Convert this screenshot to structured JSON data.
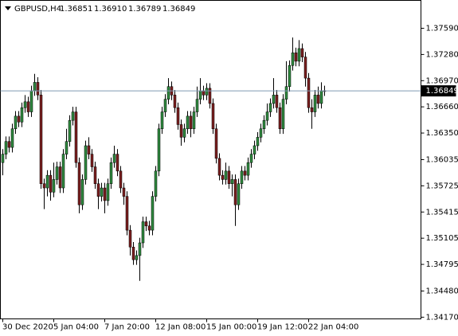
{
  "chart_data": {
    "type": "candlestick",
    "symbol": "GBPUSD,H4",
    "ohlc_labels": [
      "1.36851",
      "1.36910",
      "1.36789",
      "1.36849"
    ],
    "categories": [
      "30 Dec 2020",
      null,
      null,
      null,
      null,
      null,
      null,
      null,
      null,
      null,
      null,
      null,
      null,
      null,
      null,
      null,
      "5 Jan 04:00",
      null,
      null,
      null,
      null,
      null,
      null,
      null,
      null,
      null,
      null,
      null,
      null,
      null,
      null,
      null,
      "7 Jan 20:00",
      null,
      null,
      null,
      null,
      null,
      null,
      null,
      null,
      null,
      null,
      null,
      null,
      null,
      null,
      null,
      "12 Jan 08:00",
      null,
      null,
      null,
      null,
      null,
      null,
      null,
      null,
      null,
      null,
      null,
      null,
      null,
      null,
      null,
      "15 Jan 00:00",
      null,
      null,
      null,
      null,
      null,
      null,
      null,
      null,
      null,
      null,
      null,
      null,
      null,
      null,
      null,
      "19 Jan 12:00",
      null,
      null,
      null,
      null,
      null,
      null,
      null,
      null,
      null,
      null,
      null,
      null,
      null,
      null,
      null,
      "22 Jan 04:00",
      null,
      null,
      null,
      null,
      null
    ],
    "open": [
      1.36,
      1.361,
      1.3625,
      1.3618,
      1.364,
      1.3655,
      1.3648,
      1.3665,
      1.3672,
      1.366,
      1.3685,
      1.3695,
      1.368,
      1.3575,
      1.357,
      1.3585,
      1.3565,
      1.358,
      1.3595,
      1.357,
      1.361,
      1.3625,
      1.365,
      1.366,
      1.36,
      1.355,
      1.358,
      1.362,
      1.361,
      1.3595,
      1.3575,
      1.356,
      1.357,
      1.3555,
      1.3575,
      1.36,
      1.361,
      1.359,
      1.357,
      1.356,
      1.352,
      1.35,
      1.3485,
      1.349,
      1.3505,
      1.353,
      1.3525,
      1.352,
      1.356,
      1.359,
      1.364,
      1.366,
      1.3675,
      1.369,
      1.368,
      1.3665,
      1.3645,
      1.363,
      1.364,
      1.3655,
      1.364,
      1.366,
      1.3675,
      1.3685,
      1.368,
      1.3688,
      1.367,
      1.364,
      1.3605,
      1.3585,
      1.358,
      1.359,
      1.3575,
      1.358,
      1.355,
      1.3575,
      1.359,
      1.3585,
      1.36,
      1.361,
      1.362,
      1.363,
      1.364,
      1.365,
      1.366,
      1.367,
      1.368,
      1.3665,
      1.364,
      1.3675,
      1.369,
      1.3715,
      1.373,
      1.372,
      1.3735,
      1.3725,
      1.37,
      1.3665,
      1.366,
      1.368,
      1.367,
      1.36851
    ],
    "high": [
      1.3616,
      1.3631,
      1.3631,
      1.3646,
      1.3661,
      1.3661,
      1.3671,
      1.368,
      1.3678,
      1.3691,
      1.3705,
      1.3701,
      1.3686,
      1.3581,
      1.3591,
      1.3591,
      1.36,
      1.3601,
      1.3601,
      1.3616,
      1.364,
      1.3656,
      1.3666,
      1.3666,
      1.3606,
      1.3586,
      1.3626,
      1.363,
      1.3616,
      1.3601,
      1.3581,
      1.3576,
      1.3576,
      1.3581,
      1.3606,
      1.362,
      1.3616,
      1.3596,
      1.3576,
      1.3566,
      1.3526,
      1.3506,
      1.3496,
      1.3511,
      1.3536,
      1.3536,
      1.3531,
      1.3566,
      1.3596,
      1.3646,
      1.3666,
      1.3681,
      1.37,
      1.3696,
      1.3686,
      1.3671,
      1.3651,
      1.3646,
      1.3661,
      1.3661,
      1.3666,
      1.369,
      1.37,
      1.3691,
      1.3694,
      1.3694,
      1.3676,
      1.3646,
      1.3611,
      1.3591,
      1.36,
      1.3596,
      1.3586,
      1.3586,
      1.3581,
      1.3596,
      1.3596,
      1.3606,
      1.3616,
      1.3626,
      1.3636,
      1.3646,
      1.3656,
      1.367,
      1.3676,
      1.37,
      1.3686,
      1.3671,
      1.3681,
      1.372,
      1.3721,
      1.3748,
      1.3736,
      1.3745,
      1.3741,
      1.3731,
      1.3706,
      1.3675,
      1.3686,
      1.369,
      1.3695,
      1.3691
    ],
    "low": [
      1.3585,
      1.3604,
      1.3612,
      1.3612,
      1.3634,
      1.3642,
      1.3642,
      1.3659,
      1.3654,
      1.3654,
      1.3679,
      1.3674,
      1.3569,
      1.3545,
      1.356,
      1.3555,
      1.3559,
      1.3574,
      1.3564,
      1.3564,
      1.3604,
      1.3619,
      1.3644,
      1.3594,
      1.354,
      1.3544,
      1.3574,
      1.3604,
      1.3589,
      1.3569,
      1.3545,
      1.3554,
      1.354,
      1.3549,
      1.3569,
      1.3594,
      1.3584,
      1.3564,
      1.355,
      1.3514,
      1.349,
      1.3479,
      1.3479,
      1.346,
      1.3499,
      1.3519,
      1.3514,
      1.3514,
      1.3554,
      1.3584,
      1.3634,
      1.3654,
      1.3669,
      1.3674,
      1.3659,
      1.3639,
      1.362,
      1.3624,
      1.3634,
      1.363,
      1.3634,
      1.3654,
      1.3669,
      1.3674,
      1.3674,
      1.3664,
      1.3634,
      1.3599,
      1.3579,
      1.3574,
      1.3574,
      1.3569,
      1.356,
      1.3525,
      1.3544,
      1.3569,
      1.3579,
      1.3579,
      1.3594,
      1.3604,
      1.3614,
      1.3624,
      1.3634,
      1.3644,
      1.3654,
      1.3664,
      1.3659,
      1.3634,
      1.3634,
      1.3669,
      1.3684,
      1.3709,
      1.3714,
      1.3714,
      1.3719,
      1.369,
      1.3659,
      1.364,
      1.3654,
      1.3664,
      1.3664,
      1.36789
    ],
    "close": [
      1.361,
      1.3625,
      1.3618,
      1.364,
      1.3655,
      1.3648,
      1.3665,
      1.3672,
      1.366,
      1.3685,
      1.3695,
      1.368,
      1.3575,
      1.357,
      1.3585,
      1.3565,
      1.358,
      1.3595,
      1.357,
      1.361,
      1.3625,
      1.365,
      1.366,
      1.36,
      1.355,
      1.358,
      1.362,
      1.361,
      1.3595,
      1.3575,
      1.356,
      1.357,
      1.3555,
      1.3575,
      1.36,
      1.361,
      1.359,
      1.357,
      1.356,
      1.352,
      1.35,
      1.3485,
      1.349,
      1.3505,
      1.353,
      1.3525,
      1.352,
      1.356,
      1.359,
      1.364,
      1.366,
      1.3675,
      1.369,
      1.368,
      1.3665,
      1.3645,
      1.363,
      1.364,
      1.3655,
      1.364,
      1.366,
      1.3675,
      1.3685,
      1.368,
      1.3688,
      1.367,
      1.364,
      1.3605,
      1.3585,
      1.358,
      1.359,
      1.3575,
      1.358,
      1.355,
      1.3575,
      1.359,
      1.3585,
      1.36,
      1.361,
      1.362,
      1.363,
      1.364,
      1.365,
      1.366,
      1.367,
      1.368,
      1.3665,
      1.364,
      1.3675,
      1.369,
      1.3715,
      1.373,
      1.372,
      1.3735,
      1.3725,
      1.37,
      1.3665,
      1.366,
      1.368,
      1.367,
      1.36851,
      1.36849
    ],
    "up_color": "#2f8a3f",
    "down_color": "#7a1f1f",
    "wick_color": "#000000",
    "price_line_color": "#7f9ab3",
    "ylim": [
      1.3415,
      1.3792
    ],
    "yticks": [
      {
        "value": 1.3759,
        "label": "1.37590"
      },
      {
        "value": 1.3728,
        "label": "1.37280"
      },
      {
        "value": 1.3697,
        "label": "1.36970"
      },
      {
        "value": 1.3666,
        "label": "1.36660"
      },
      {
        "value": 1.3635,
        "label": "1.36350"
      },
      1.36035,
      1.35725,
      1.35415,
      1.35105,
      1.34795,
      {
        "value": 1.3448,
        "label": "1.34480"
      },
      {
        "value": 1.3417,
        "label": "1.34170"
      }
    ]
  }
}
